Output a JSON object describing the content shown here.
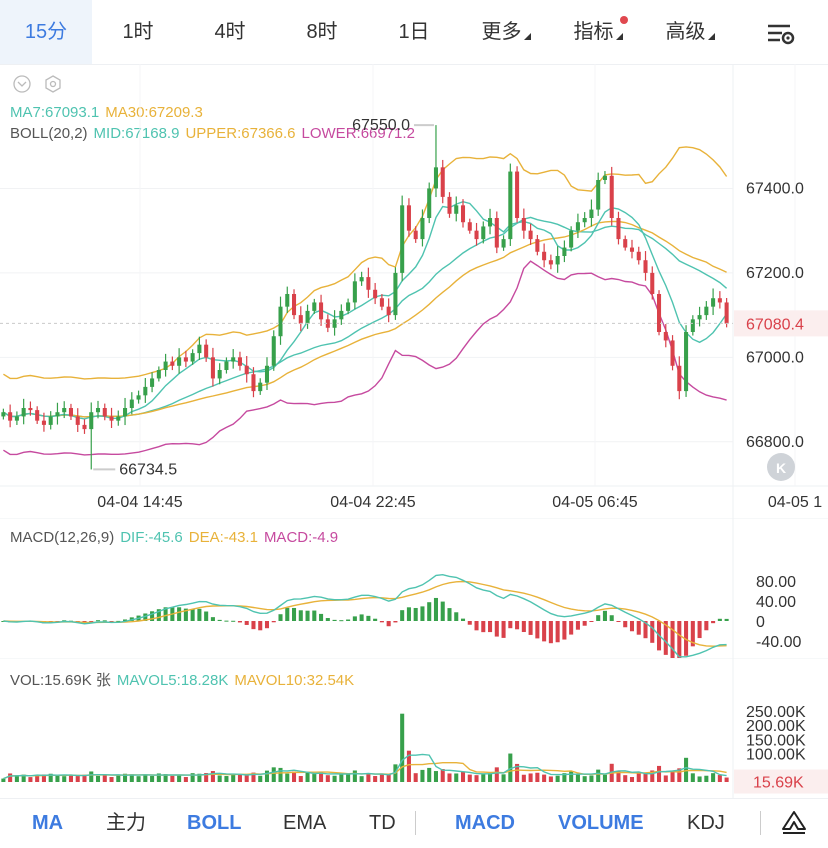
{
  "header": {
    "tabs": [
      {
        "label": "15分",
        "active": true
      },
      {
        "label": "1时"
      },
      {
        "label": "4时"
      },
      {
        "label": "8时"
      },
      {
        "label": "1日"
      },
      {
        "label": "更多",
        "dropdown": true
      },
      {
        "label": "指标",
        "dropdown": true,
        "dot": true
      },
      {
        "label": "高级",
        "dropdown": true
      }
    ]
  },
  "colors": {
    "up": "#37a04b",
    "down": "#d9414a",
    "ma7": "#4fc3b0",
    "ma30": "#e8b23a",
    "boll_mid": "#4fc3b0",
    "boll_upper": "#e8b23a",
    "boll_lower": "#c64a9f",
    "accent": "#3d7be0"
  },
  "main_legend": {
    "ma7": "MA7:67093.1",
    "ma30": "MA30:67209.3",
    "boll": "BOLL(20,2)",
    "mid": "MID:67168.9",
    "upper": "UPPER:67366.6",
    "lower": "LOWER:66971.2"
  },
  "macd_legend": {
    "title": "MACD(12,26,9)",
    "dif": "DIF:-45.6",
    "dea": "DEA:-43.1",
    "macd": "MACD:-4.9"
  },
  "vol_legend": {
    "vol": "VOL:15.69K 张",
    "mavol5": "MAVOL5:18.28K",
    "mavol10": "MAVOL10:32.54K"
  },
  "bottom_bar": {
    "items": [
      {
        "label": "MA",
        "active": true
      },
      {
        "label": "主力"
      },
      {
        "label": "BOLL",
        "active": true
      },
      {
        "label": "EMA"
      },
      {
        "label": "TD"
      },
      {
        "label": "MACD",
        "active": true
      },
      {
        "label": "VOLUME",
        "active": true
      },
      {
        "label": "KDJ"
      }
    ]
  },
  "chart_data": [
    {
      "type": "candlestick",
      "y_ticks": [
        "67400.0",
        "67200.0",
        "67000.0",
        "66800.0"
      ],
      "ylim": [
        66700,
        67600
      ],
      "x_ticks": [
        "04-04 14:45",
        "04-04 22:45",
        "04-05 06:45",
        "04-05 1"
      ],
      "current_price": "67080.4",
      "current_price_value": 67080.4,
      "high_label": "67550.0",
      "high_value": 67550.0,
      "low_label": "66734.5",
      "low_value": 66734.5,
      "close_series": [
        66870,
        66850,
        66860,
        66880,
        66875,
        66850,
        66840,
        66860,
        66870,
        66880,
        66860,
        66840,
        66830,
        66870,
        66880,
        66860,
        66850,
        66860,
        66880,
        66900,
        66910,
        66930,
        66950,
        66970,
        66990,
        66980,
        67000,
        66990,
        67010,
        67030,
        67000,
        66950,
        66970,
        66990,
        67000,
        66980,
        66960,
        66920,
        66940,
        66980,
        67050,
        67120,
        67150,
        67100,
        67080,
        67110,
        67130,
        67090,
        67070,
        67090,
        67110,
        67130,
        67180,
        67190,
        67160,
        67140,
        67120,
        67100,
        67200,
        67360,
        67300,
        67280,
        67330,
        67400,
        67450,
        67380,
        67340,
        67360,
        67320,
        67300,
        67280,
        67310,
        67330,
        67260,
        67280,
        67440,
        67330,
        67300,
        67280,
        67250,
        67230,
        67220,
        67240,
        67260,
        67300,
        67320,
        67330,
        67350,
        67420,
        67430,
        67330,
        67280,
        67260,
        67250,
        67230,
        67200,
        67150,
        67060,
        67040,
        66980,
        66920,
        67060,
        67090,
        67100,
        67120,
        67140,
        67130,
        67080
      ]
    },
    {
      "type": "macd",
      "y_ticks": [
        "80.00",
        "40.00",
        "0",
        "-40.00"
      ],
      "dif": -45.6,
      "dea": -43.1,
      "macd": -4.9
    },
    {
      "type": "bar",
      "name": "VOL",
      "y_ticks": [
        "250.00K",
        "200.00K",
        "150.00K",
        "100.00K"
      ],
      "current_label": "15.69K",
      "current_volume": 15.69
    }
  ]
}
